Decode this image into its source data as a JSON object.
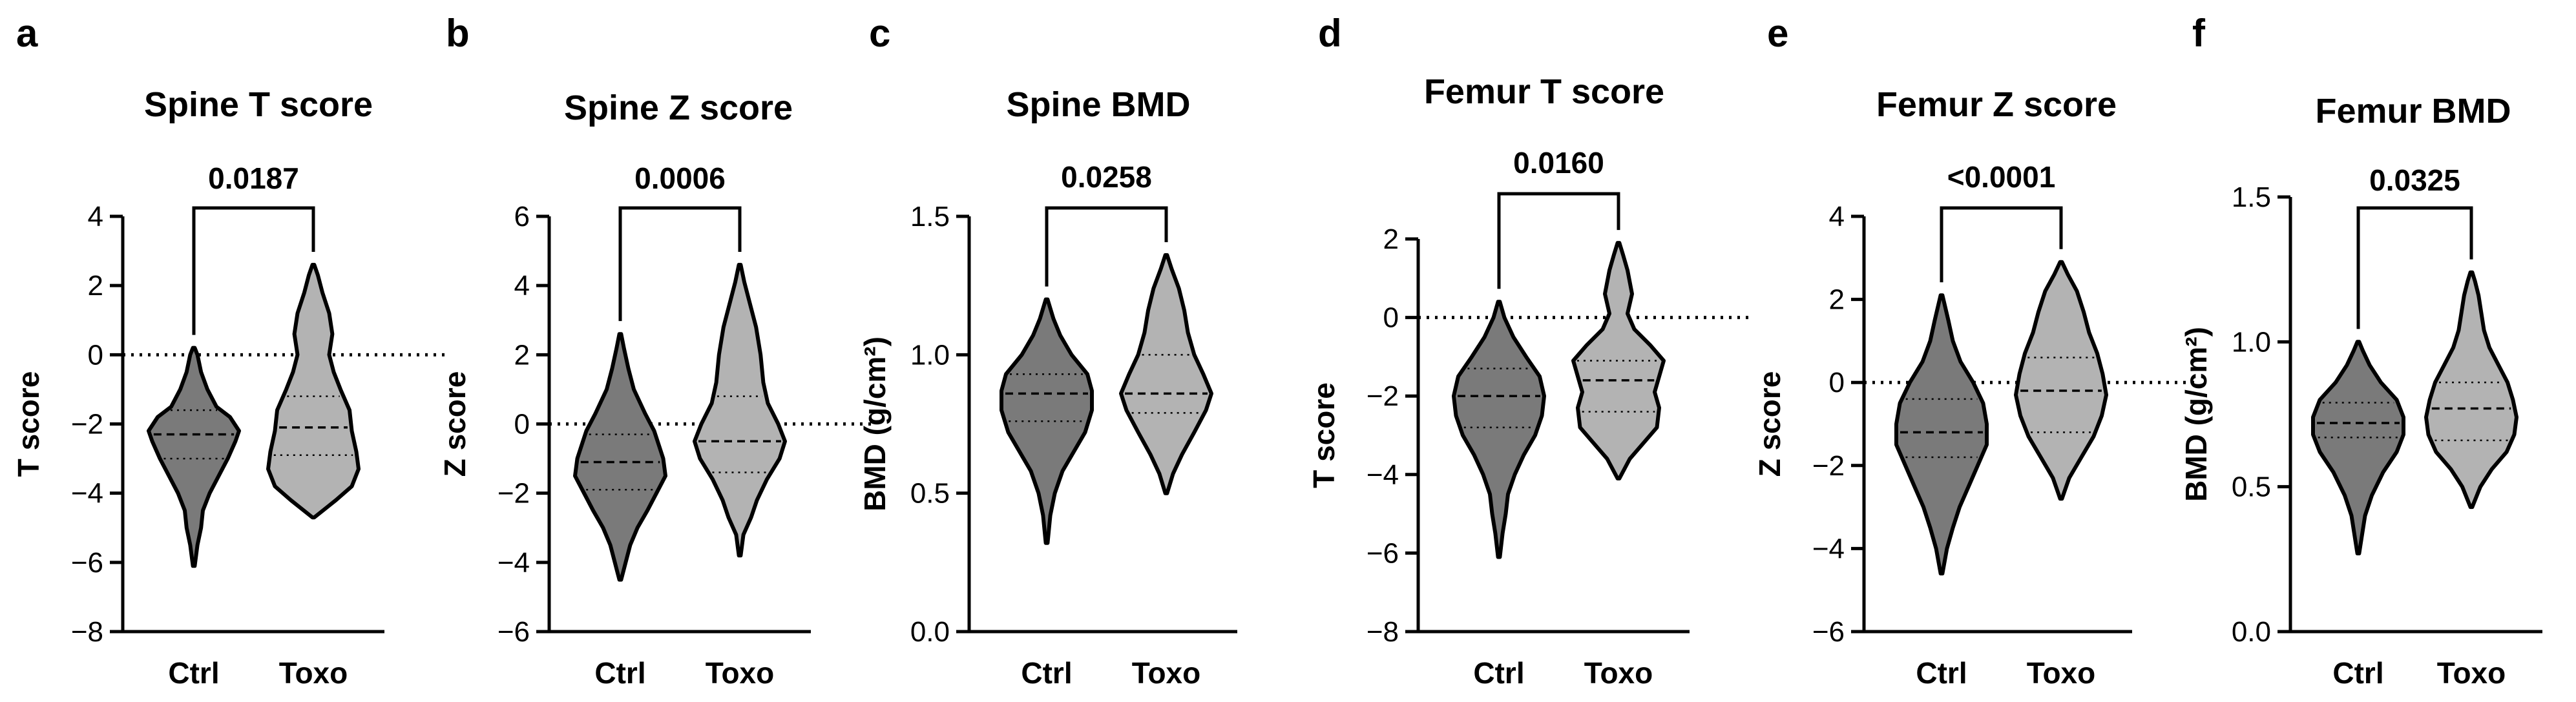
{
  "chart_data": [
    {
      "type": "violin",
      "panel": "a",
      "title": "Spine T score",
      "xlabel": "",
      "ylabel": "T score",
      "ylim": [
        -8,
        4
      ],
      "ticks": [
        4,
        2,
        0,
        -2,
        -4,
        -6,
        -8
      ],
      "tick_labels": [
        "4",
        "2",
        "0",
        "−2",
        "−4",
        "−6",
        "−8"
      ],
      "categories": [
        "Ctrl",
        "Toxo"
      ],
      "reference_line": 0,
      "p_value": "0.0187",
      "series": [
        {
          "name": "Ctrl",
          "min": -6.1,
          "q1": -3.0,
          "median": -2.3,
          "q3": -1.6,
          "max": 0.2,
          "profile": [
            [
              -6.1,
              0.02
            ],
            [
              -5.5,
              0.08
            ],
            [
              -5.0,
              0.16
            ],
            [
              -4.5,
              0.2
            ],
            [
              -4.0,
              0.35
            ],
            [
              -3.5,
              0.55
            ],
            [
              -3.0,
              0.75
            ],
            [
              -2.5,
              0.92
            ],
            [
              -2.2,
              1.0
            ],
            [
              -1.8,
              0.8
            ],
            [
              -1.5,
              0.5
            ],
            [
              -1.0,
              0.3
            ],
            [
              -0.5,
              0.16
            ],
            [
              0.0,
              0.08
            ],
            [
              0.2,
              0.02
            ]
          ]
        },
        {
          "name": "Toxo",
          "min": -4.7,
          "q1": -2.9,
          "median": -2.1,
          "q3": -1.2,
          "max": 2.6,
          "profile": [
            [
              -4.7,
              0.02
            ],
            [
              -4.2,
              0.5
            ],
            [
              -3.8,
              0.85
            ],
            [
              -3.3,
              1.0
            ],
            [
              -2.8,
              0.95
            ],
            [
              -2.2,
              0.85
            ],
            [
              -1.6,
              0.8
            ],
            [
              -1.0,
              0.6
            ],
            [
              -0.5,
              0.45
            ],
            [
              0.0,
              0.35
            ],
            [
              0.6,
              0.42
            ],
            [
              1.2,
              0.35
            ],
            [
              1.8,
              0.2
            ],
            [
              2.3,
              0.1
            ],
            [
              2.6,
              0.02
            ]
          ]
        }
      ]
    },
    {
      "type": "violin",
      "panel": "b",
      "title": "Spine Z score",
      "xlabel": "",
      "ylabel": "Z score",
      "ylim": [
        -6,
        6
      ],
      "ticks": [
        6,
        4,
        2,
        0,
        -2,
        -4,
        -6
      ],
      "tick_labels": [
        "6",
        "4",
        "2",
        "0",
        "−2",
        "−4",
        "−6"
      ],
      "categories": [
        "Ctrl",
        "Toxo"
      ],
      "reference_line": 0,
      "p_value": "0.0006",
      "series": [
        {
          "name": "Ctrl",
          "min": -4.5,
          "q1": -1.9,
          "median": -1.1,
          "q3": -0.3,
          "max": 2.6,
          "profile": [
            [
              -4.5,
              0.02
            ],
            [
              -4.0,
              0.12
            ],
            [
              -3.5,
              0.22
            ],
            [
              -3.0,
              0.38
            ],
            [
              -2.5,
              0.6
            ],
            [
              -2.0,
              0.8
            ],
            [
              -1.5,
              1.0
            ],
            [
              -1.0,
              0.95
            ],
            [
              -0.6,
              0.85
            ],
            [
              -0.2,
              0.75
            ],
            [
              0.3,
              0.55
            ],
            [
              1.0,
              0.3
            ],
            [
              1.6,
              0.18
            ],
            [
              2.2,
              0.08
            ],
            [
              2.6,
              0.02
            ]
          ]
        },
        {
          "name": "Toxo",
          "min": -3.8,
          "q1": -1.4,
          "median": -0.5,
          "q3": 0.8,
          "max": 4.6,
          "profile": [
            [
              -3.8,
              0.02
            ],
            [
              -3.2,
              0.08
            ],
            [
              -2.7,
              0.25
            ],
            [
              -2.2,
              0.38
            ],
            [
              -1.6,
              0.6
            ],
            [
              -1.0,
              0.88
            ],
            [
              -0.5,
              1.0
            ],
            [
              0.0,
              0.85
            ],
            [
              0.6,
              0.62
            ],
            [
              1.2,
              0.52
            ],
            [
              2.0,
              0.46
            ],
            [
              2.8,
              0.36
            ],
            [
              3.5,
              0.22
            ],
            [
              4.1,
              0.1
            ],
            [
              4.6,
              0.02
            ]
          ]
        }
      ]
    },
    {
      "type": "violin",
      "panel": "c",
      "title": "Spine BMD",
      "xlabel": "",
      "ylabel": "BMD (g/cm²)",
      "ylim": [
        0.0,
        1.5
      ],
      "ticks": [
        1.5,
        1.0,
        0.5,
        0.0
      ],
      "tick_labels": [
        "1.5",
        "1.0",
        "0.5",
        "0.0"
      ],
      "categories": [
        "Ctrl",
        "Toxo"
      ],
      "reference_line": null,
      "p_value": "0.0258",
      "series": [
        {
          "name": "Ctrl",
          "min": 0.32,
          "q1": 0.76,
          "median": 0.86,
          "q3": 0.93,
          "max": 1.2,
          "profile": [
            [
              0.32,
              0.02
            ],
            [
              0.42,
              0.08
            ],
            [
              0.5,
              0.18
            ],
            [
              0.58,
              0.35
            ],
            [
              0.65,
              0.6
            ],
            [
              0.72,
              0.85
            ],
            [
              0.8,
              1.0
            ],
            [
              0.87,
              1.0
            ],
            [
              0.93,
              0.9
            ],
            [
              1.0,
              0.55
            ],
            [
              1.07,
              0.3
            ],
            [
              1.13,
              0.15
            ],
            [
              1.2,
              0.02
            ]
          ]
        },
        {
          "name": "Toxo",
          "min": 0.5,
          "q1": 0.79,
          "median": 0.86,
          "q3": 1.0,
          "max": 1.36,
          "profile": [
            [
              0.5,
              0.02
            ],
            [
              0.57,
              0.15
            ],
            [
              0.64,
              0.35
            ],
            [
              0.72,
              0.62
            ],
            [
              0.8,
              0.88
            ],
            [
              0.86,
              1.0
            ],
            [
              0.93,
              0.82
            ],
            [
              1.0,
              0.62
            ],
            [
              1.08,
              0.48
            ],
            [
              1.16,
              0.4
            ],
            [
              1.24,
              0.28
            ],
            [
              1.31,
              0.12
            ],
            [
              1.36,
              0.02
            ]
          ]
        }
      ]
    },
    {
      "type": "violin",
      "panel": "d",
      "title": "Femur T score",
      "xlabel": "",
      "ylabel": "T score",
      "ylim": [
        -8,
        2
      ],
      "ticks": [
        2,
        0,
        -2,
        -4,
        -6,
        -8
      ],
      "tick_labels": [
        "2",
        "0",
        "−2",
        "−4",
        "−6",
        "−8"
      ],
      "categories": [
        "Ctrl",
        "Toxo"
      ],
      "reference_line": 0,
      "p_value": "0.0160",
      "series": [
        {
          "name": "Ctrl",
          "min": -6.1,
          "q1": -2.8,
          "median": -2.0,
          "q3": -1.3,
          "max": 0.4,
          "profile": [
            [
              -6.1,
              0.02
            ],
            [
              -5.5,
              0.08
            ],
            [
              -5.0,
              0.15
            ],
            [
              -4.5,
              0.2
            ],
            [
              -4.0,
              0.35
            ],
            [
              -3.5,
              0.55
            ],
            [
              -3.0,
              0.8
            ],
            [
              -2.5,
              0.95
            ],
            [
              -2.0,
              1.0
            ],
            [
              -1.5,
              0.9
            ],
            [
              -1.0,
              0.6
            ],
            [
              -0.5,
              0.32
            ],
            [
              0.0,
              0.12
            ],
            [
              0.4,
              0.02
            ]
          ]
        },
        {
          "name": "Toxo",
          "min": -4.1,
          "q1": -2.4,
          "median": -1.6,
          "q3": -1.1,
          "max": 1.9,
          "profile": [
            [
              -4.1,
              0.02
            ],
            [
              -3.6,
              0.25
            ],
            [
              -3.2,
              0.55
            ],
            [
              -2.8,
              0.85
            ],
            [
              -2.3,
              0.9
            ],
            [
              -1.9,
              0.8
            ],
            [
              -1.5,
              0.9
            ],
            [
              -1.1,
              1.0
            ],
            [
              -0.7,
              0.7
            ],
            [
              -0.3,
              0.35
            ],
            [
              0.1,
              0.2
            ],
            [
              0.6,
              0.3
            ],
            [
              1.2,
              0.2
            ],
            [
              1.6,
              0.1
            ],
            [
              1.9,
              0.02
            ]
          ]
        }
      ]
    },
    {
      "type": "violin",
      "panel": "e",
      "title": "Femur Z score",
      "xlabel": "",
      "ylabel": "Z score",
      "ylim": [
        -6,
        4
      ],
      "ticks": [
        4,
        2,
        0,
        -2,
        -4,
        -6
      ],
      "tick_labels": [
        "4",
        "2",
        "0",
        "−2",
        "−4",
        "−6"
      ],
      "categories": [
        "Ctrl",
        "Toxo"
      ],
      "reference_line": 0,
      "p_value": "<0.0001",
      "series": [
        {
          "name": "Ctrl",
          "min": -4.6,
          "q1": -1.8,
          "median": -1.2,
          "q3": -0.4,
          "max": 2.1,
          "profile": [
            [
              -4.6,
              0.02
            ],
            [
              -4.0,
              0.12
            ],
            [
              -3.5,
              0.25
            ],
            [
              -3.0,
              0.4
            ],
            [
              -2.5,
              0.6
            ],
            [
              -2.0,
              0.8
            ],
            [
              -1.5,
              1.0
            ],
            [
              -1.0,
              1.0
            ],
            [
              -0.5,
              0.92
            ],
            [
              0.0,
              0.7
            ],
            [
              0.5,
              0.42
            ],
            [
              1.0,
              0.25
            ],
            [
              1.5,
              0.15
            ],
            [
              2.1,
              0.02
            ]
          ]
        },
        {
          "name": "Toxo",
          "min": -2.8,
          "q1": -1.2,
          "median": -0.2,
          "q3": 0.6,
          "max": 2.9,
          "profile": [
            [
              -2.8,
              0.02
            ],
            [
              -2.3,
              0.18
            ],
            [
              -1.8,
              0.45
            ],
            [
              -1.3,
              0.72
            ],
            [
              -0.8,
              0.9
            ],
            [
              -0.3,
              1.0
            ],
            [
              0.2,
              0.92
            ],
            [
              0.7,
              0.8
            ],
            [
              1.2,
              0.62
            ],
            [
              1.7,
              0.5
            ],
            [
              2.2,
              0.35
            ],
            [
              2.6,
              0.15
            ],
            [
              2.9,
              0.02
            ]
          ]
        }
      ]
    },
    {
      "type": "violin",
      "panel": "f",
      "title": "Femur BMD",
      "xlabel": "",
      "ylabel": "BMD (g/cm²)",
      "ylim": [
        0.0,
        1.5
      ],
      "ticks": [
        1.5,
        1.0,
        0.5,
        0.0
      ],
      "tick_labels": [
        "1.5",
        "1.0",
        "0.5",
        "0.0"
      ],
      "categories": [
        "Ctrl",
        "Toxo"
      ],
      "reference_line": null,
      "p_value": "0.0325",
      "series": [
        {
          "name": "Ctrl",
          "min": 0.27,
          "q1": 0.67,
          "median": 0.72,
          "q3": 0.79,
          "max": 1.0,
          "profile": [
            [
              0.27,
              0.02
            ],
            [
              0.33,
              0.08
            ],
            [
              0.4,
              0.15
            ],
            [
              0.47,
              0.3
            ],
            [
              0.55,
              0.55
            ],
            [
              0.62,
              0.85
            ],
            [
              0.68,
              1.0
            ],
            [
              0.74,
              1.0
            ],
            [
              0.8,
              0.85
            ],
            [
              0.86,
              0.5
            ],
            [
              0.92,
              0.25
            ],
            [
              0.97,
              0.1
            ],
            [
              1.0,
              0.02
            ]
          ]
        },
        {
          "name": "Toxo",
          "min": 0.43,
          "q1": 0.66,
          "median": 0.77,
          "q3": 0.86,
          "max": 1.24,
          "profile": [
            [
              0.43,
              0.02
            ],
            [
              0.5,
              0.2
            ],
            [
              0.56,
              0.45
            ],
            [
              0.62,
              0.78
            ],
            [
              0.68,
              0.95
            ],
            [
              0.74,
              1.0
            ],
            [
              0.8,
              0.92
            ],
            [
              0.86,
              0.8
            ],
            [
              0.92,
              0.6
            ],
            [
              0.98,
              0.4
            ],
            [
              1.04,
              0.28
            ],
            [
              1.1,
              0.22
            ],
            [
              1.16,
              0.16
            ],
            [
              1.21,
              0.08
            ],
            [
              1.24,
              0.02
            ]
          ]
        }
      ]
    }
  ]
}
